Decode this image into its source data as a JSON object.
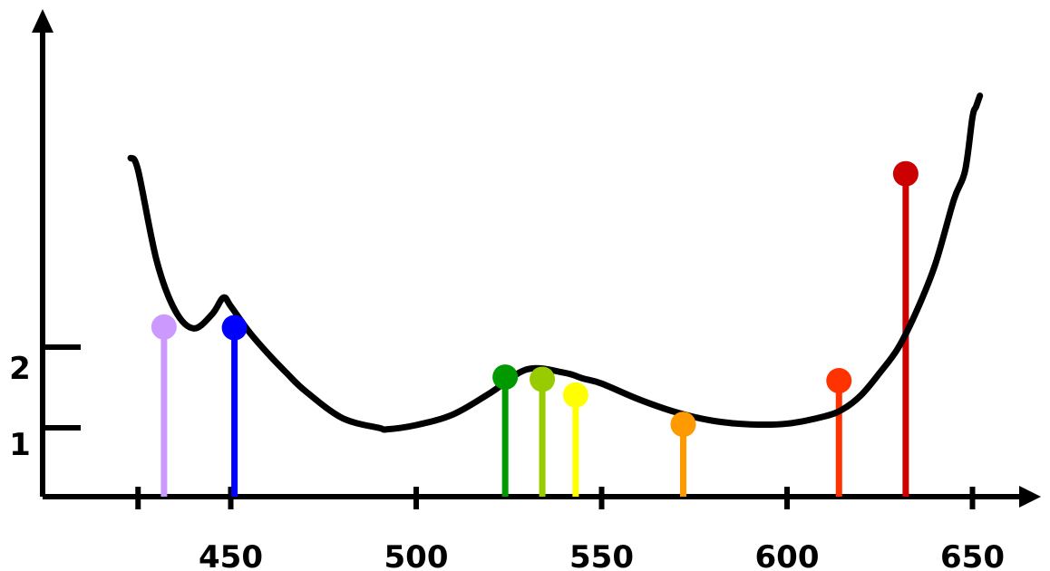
{
  "chart_data": {
    "type": "line",
    "title": "",
    "xlabel": "",
    "ylabel": "",
    "x_ticks": [
      {
        "value": 425,
        "label": ""
      },
      {
        "value": 450,
        "label": "450"
      },
      {
        "value": 500,
        "label": "500"
      },
      {
        "value": 550,
        "label": "550"
      },
      {
        "value": 600,
        "label": "600"
      },
      {
        "value": 650,
        "label": "650"
      }
    ],
    "y_ticks": [
      {
        "value": 1,
        "label": "1"
      },
      {
        "value": 2,
        "label": "2"
      }
    ],
    "curve": {
      "x": [
        423,
        425,
        430,
        435,
        440,
        445,
        448,
        450,
        455,
        460,
        465,
        470,
        480,
        490,
        492,
        500,
        510,
        520,
        530,
        540,
        545,
        550,
        560,
        570,
        580,
        590,
        600,
        610,
        615,
        620,
        625,
        630,
        635,
        640,
        645,
        648,
        650,
        651,
        652
      ],
      "y": [
        4.73,
        4.56,
        3.3,
        2.6,
        2.35,
        2.55,
        2.78,
        2.66,
        2.3,
        2.0,
        1.73,
        1.48,
        1.1,
        0.96,
        0.94,
        1.0,
        1.15,
        1.45,
        1.78,
        1.73,
        1.65,
        1.58,
        1.36,
        1.18,
        1.06,
        1.01,
        1.02,
        1.12,
        1.22,
        1.42,
        1.73,
        2.08,
        2.6,
        3.25,
        4.15,
        4.55,
        5.3,
        5.45,
        5.6
      ]
    },
    "points": [
      {
        "x": 432,
        "y": 2.37,
        "color": "#cc99ff"
      },
      {
        "x": 451,
        "y": 2.36,
        "color": "#0000ff"
      },
      {
        "x": 524,
        "y": 1.67,
        "color": "#009900"
      },
      {
        "x": 534,
        "y": 1.64,
        "color": "#99cc00"
      },
      {
        "x": 543,
        "y": 1.42,
        "color": "#ffff00"
      },
      {
        "x": 572,
        "y": 1.01,
        "color": "#ff9900"
      },
      {
        "x": 614,
        "y": 1.62,
        "color": "#ff3300"
      },
      {
        "x": 632,
        "y": 4.51,
        "color": "#cc0000"
      }
    ],
    "xlim": [
      412,
      690
    ],
    "ylim": [
      0,
      6.2
    ],
    "grid": false,
    "legend": "none",
    "axis_color": "#000000",
    "curve_color": "#000000"
  }
}
